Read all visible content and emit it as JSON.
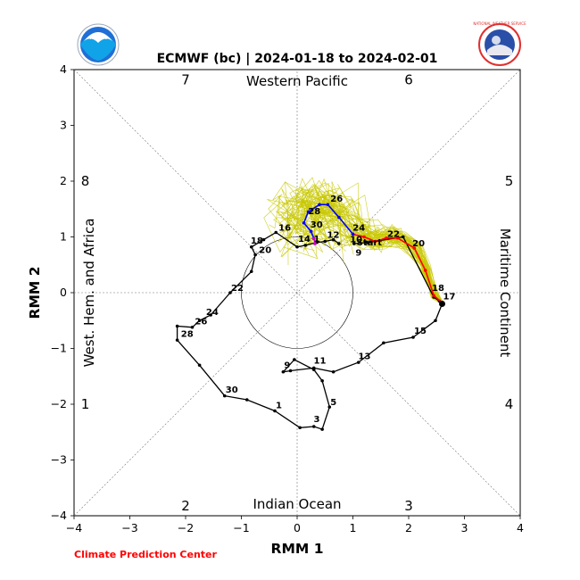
{
  "chart_data": {
    "type": "line",
    "title": "ECMWF (bc) | 2024-01-18 to 2024-02-01",
    "xlabel": "RMM 1",
    "ylabel": "RMM 2",
    "xlim": [
      -4,
      4
    ],
    "ylim": [
      -4,
      4
    ],
    "x_ticks": [
      "−4",
      "−3",
      "−2",
      "−1",
      "0",
      "1",
      "2",
      "3",
      "4"
    ],
    "y_ticks": [
      "−4",
      "−3",
      "−2",
      "−1",
      "0",
      "1",
      "2",
      "3",
      "4"
    ],
    "regions": {
      "top": "Western Pacific",
      "bottom": "Indian Ocean",
      "left": "West. Hem. and Africa",
      "right": "Maritime Continent"
    },
    "phases": [
      {
        "label": "7",
        "x": -2.0,
        "y": 3.82
      },
      {
        "label": "6",
        "x": 2.0,
        "y": 3.82
      },
      {
        "label": "8",
        "x": -3.8,
        "y": 2.0
      },
      {
        "label": "5",
        "x": 3.8,
        "y": 2.0
      },
      {
        "label": "1",
        "x": -3.8,
        "y": -2.0
      },
      {
        "label": "4",
        "x": 3.8,
        "y": -2.0
      },
      {
        "label": "2",
        "x": -2.0,
        "y": -3.82
      },
      {
        "label": "3",
        "x": 2.0,
        "y": -3.82
      }
    ],
    "observed": {
      "color": "#000000",
      "points": [
        [
          0.75,
          0.88
        ],
        [
          0.65,
          0.95
        ],
        [
          0.5,
          0.92
        ],
        [
          0.35,
          0.9
        ],
        [
          0.15,
          0.85
        ],
        [
          0.0,
          0.82
        ],
        [
          -0.38,
          1.08
        ],
        [
          -0.6,
          0.95
        ],
        [
          -0.82,
          0.82
        ],
        [
          -0.75,
          0.68
        ],
        [
          -0.82,
          0.38
        ],
        [
          -1.2,
          0.0
        ],
        [
          -1.55,
          -0.4
        ],
        [
          -1.75,
          -0.5
        ],
        [
          -1.88,
          -0.62
        ],
        [
          -2.15,
          -0.6
        ],
        [
          -2.15,
          -0.85
        ],
        [
          -1.75,
          -1.3
        ],
        [
          -1.3,
          -1.85
        ],
        [
          -0.9,
          -1.92
        ],
        [
          -0.4,
          -2.12
        ],
        [
          0.05,
          -2.42
        ],
        [
          0.3,
          -2.4
        ],
        [
          0.45,
          -2.45
        ],
        [
          0.58,
          -2.05
        ],
        [
          0.45,
          -1.58
        ],
        [
          0.3,
          -1.38
        ],
        [
          -0.05,
          -1.2
        ],
        [
          -0.25,
          -1.42
        ],
        [
          -0.12,
          -1.4
        ],
        [
          0.3,
          -1.35
        ],
        [
          0.65,
          -1.42
        ],
        [
          1.1,
          -1.25
        ],
        [
          1.55,
          -0.9
        ],
        [
          2.08,
          -0.8
        ],
        [
          2.48,
          -0.5
        ],
        [
          2.6,
          -0.2
        ],
        [
          2.55,
          -0.15
        ],
        [
          2.45,
          -0.08
        ],
        [
          1.9,
          1.0
        ],
        [
          1.25,
          0.9
        ],
        [
          1.02,
          0.88
        ]
      ],
      "labels": [
        {
          "text": "Start",
          "x": 1.05,
          "y": 0.82
        },
        {
          "text": "9",
          "x": 1.03,
          "y": 0.63
        },
        {
          "text": "10",
          "x": 0.93,
          "y": 0.87
        },
        {
          "text": "12",
          "x": 0.52,
          "y": 0.95
        },
        {
          "text": "14",
          "x": 0.0,
          "y": 0.88
        },
        {
          "text": "16",
          "x": -0.35,
          "y": 1.08
        },
        {
          "text": "18",
          "x": -0.85,
          "y": 0.85
        },
        {
          "text": "20",
          "x": -0.7,
          "y": 0.68
        },
        {
          "text": "22",
          "x": -1.2,
          "y": 0.0
        },
        {
          "text": "24",
          "x": -1.65,
          "y": -0.43
        },
        {
          "text": "26",
          "x": -1.85,
          "y": -0.6
        },
        {
          "text": "28",
          "x": -2.1,
          "y": -0.82
        },
        {
          "text": "30",
          "x": -1.3,
          "y": -1.82
        },
        {
          "text": "1",
          "x": -0.4,
          "y": -2.1
        },
        {
          "text": "3",
          "x": 0.28,
          "y": -2.35
        },
        {
          "text": "5",
          "x": 0.58,
          "y": -2.05
        },
        {
          "text": "9",
          "x": -0.25,
          "y": -1.38
        },
        {
          "text": "11",
          "x": 0.28,
          "y": -1.3
        },
        {
          "text": "13",
          "x": 1.08,
          "y": -1.22
        },
        {
          "text": "15",
          "x": 2.08,
          "y": -0.77
        },
        {
          "text": "17",
          "x": 2.6,
          "y": -0.15
        },
        {
          "text": "18",
          "x": 2.4,
          "y": 0.0
        },
        {
          "text": "20",
          "x": 2.05,
          "y": 0.8
        },
        {
          "text": "22",
          "x": 1.6,
          "y": 0.97
        },
        {
          "text": "24",
          "x": 0.98,
          "y": 1.08
        },
        {
          "text": "26",
          "x": 0.58,
          "y": 1.6
        },
        {
          "text": "28",
          "x": 0.18,
          "y": 1.38
        },
        {
          "text": "30",
          "x": 0.22,
          "y": 1.14
        },
        {
          "text": "1",
          "x": 0.28,
          "y": 0.88
        }
      ]
    },
    "forecast_red": {
      "color": "#ff0000",
      "points": [
        [
          2.62,
          -0.2
        ],
        [
          2.45,
          -0.05
        ],
        [
          2.3,
          0.4
        ],
        [
          2.1,
          0.8
        ],
        [
          1.8,
          0.98
        ],
        [
          1.6,
          0.98
        ],
        [
          1.4,
          0.92
        ],
        [
          1.2,
          1.0
        ],
        [
          1.0,
          1.05
        ]
      ]
    },
    "forecast_blue": {
      "color": "#0000ff",
      "points": [
        [
          1.0,
          1.05
        ],
        [
          0.75,
          1.35
        ],
        [
          0.55,
          1.58
        ],
        [
          0.4,
          1.58
        ],
        [
          0.2,
          1.45
        ],
        [
          0.12,
          1.25
        ],
        [
          0.25,
          1.1
        ],
        [
          0.3,
          0.97
        ]
      ]
    },
    "forecast_magenta": {
      "color": "#cc00cc",
      "points": [
        [
          0.3,
          0.97
        ],
        [
          0.32,
          0.88
        ]
      ]
    },
    "ensemble_color": "#c8c800",
    "start_marker": {
      "x": 2.6,
      "y": -0.2
    },
    "unit_circle": true,
    "credit": "Climate Prediction Center"
  },
  "logos": {
    "left": "NOAA",
    "right": "NATIONAL WEATHER SERVICE"
  }
}
